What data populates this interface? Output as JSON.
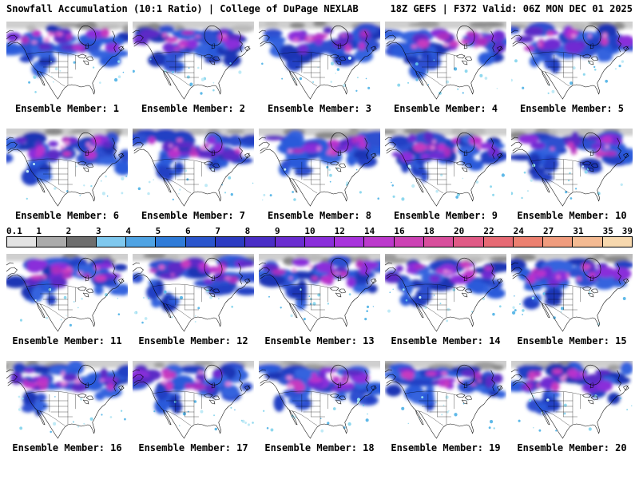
{
  "header": {
    "title_left": "Snowfall Accumulation (10:1 Ratio) | College of DuPage NEXLAB",
    "title_right": "18Z GEFS | F372 Valid: 06Z MON DEC 01 2025"
  },
  "colorbar": {
    "ticks": [
      "0.1",
      "1",
      "2",
      "3",
      "4",
      "5",
      "6",
      "7",
      "8",
      "9",
      "10",
      "12",
      "14",
      "16",
      "18",
      "20",
      "22",
      "24",
      "27",
      "31",
      "35",
      "39"
    ],
    "colors": [
      "#E3E3E3",
      "#ABABAB",
      "#6E6E6E",
      "#7FC8EE",
      "#4FA3E3",
      "#2F7BD8",
      "#2A55CC",
      "#2C3BC2",
      "#4A2EC6",
      "#6A2DD0",
      "#8A2EDA",
      "#A833DC",
      "#BC39CC",
      "#CC42B4",
      "#D84E9C",
      "#E05A86",
      "#E66A74",
      "#EC8070",
      "#F09C7E",
      "#F4BA92",
      "#F7D8AE"
    ]
  },
  "map_colors": {
    "light_snow_gray": "#C9C9C9",
    "moderate_blue": "#2F55D2",
    "heavy_purple": "#8A2EDA",
    "extreme_magenta": "#C63BC0",
    "spot_pink": "#E668CF",
    "trace_cyan": "#8FD8EE"
  },
  "panels": [
    {
      "member": 1,
      "label": "Ensemble Member: 1"
    },
    {
      "member": 2,
      "label": "Ensemble Member: 2"
    },
    {
      "member": 3,
      "label": "Ensemble Member: 3"
    },
    {
      "member": 4,
      "label": "Ensemble Member: 4"
    },
    {
      "member": 5,
      "label": "Ensemble Member: 5"
    },
    {
      "member": 6,
      "label": "Ensemble Member: 6"
    },
    {
      "member": 7,
      "label": "Ensemble Member: 7"
    },
    {
      "member": 8,
      "label": "Ensemble Member: 8"
    },
    {
      "member": 9,
      "label": "Ensemble Member: 9"
    },
    {
      "member": 10,
      "label": "Ensemble Member: 10"
    },
    {
      "member": 11,
      "label": "Ensemble Member: 11"
    },
    {
      "member": 12,
      "label": "Ensemble Member: 12"
    },
    {
      "member": 13,
      "label": "Ensemble Member: 13"
    },
    {
      "member": 14,
      "label": "Ensemble Member: 14"
    },
    {
      "member": 15,
      "label": "Ensemble Member: 15"
    },
    {
      "member": 16,
      "label": "Ensemble Member: 16"
    },
    {
      "member": 17,
      "label": "Ensemble Member: 17"
    },
    {
      "member": 18,
      "label": "Ensemble Member: 18"
    },
    {
      "member": 19,
      "label": "Ensemble Member: 19"
    },
    {
      "member": 20,
      "label": "Ensemble Member: 20"
    }
  ]
}
